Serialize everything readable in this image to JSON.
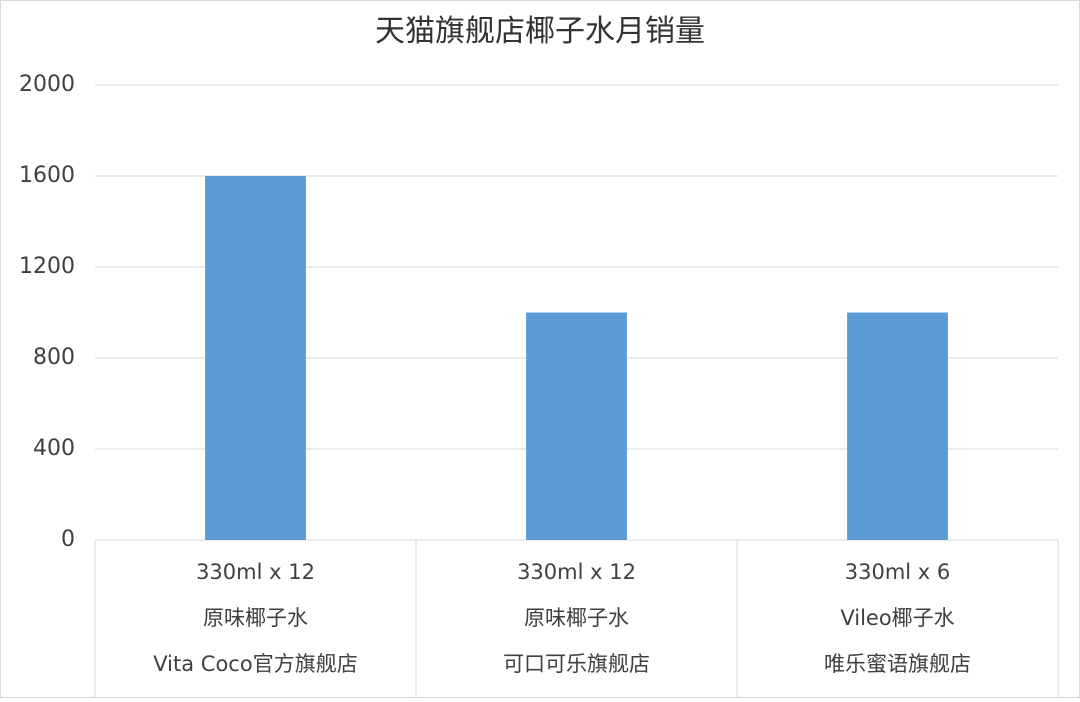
{
  "chart_data": {
    "type": "bar",
    "title": "天猫旗舰店椰子水月销量",
    "categories": [
      [
        "330ml x 12",
        "原味椰子水",
        "Vita Coco官方旗舰店"
      ],
      [
        "330ml x 12",
        "原味椰子水",
        "可口可乐旗舰店"
      ],
      [
        "330ml x 6",
        "Vileo椰子水",
        "唯乐蜜语旗舰店"
      ]
    ],
    "values": [
      1600,
      1000,
      1000
    ],
    "color": "#5b9bd5",
    "ylim": [
      0,
      2000
    ],
    "yticks": [
      0,
      400,
      800,
      1200,
      1600,
      2000
    ],
    "grid": true
  }
}
